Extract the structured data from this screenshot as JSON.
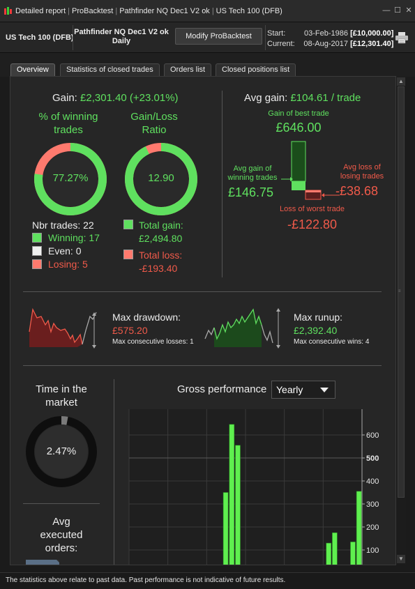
{
  "window": {
    "title_parts": [
      "Detailed report",
      "ProBacktest",
      "Pathfinder NQ Dec1 V2 ok",
      "US Tech 100 (DFB)"
    ],
    "controls": {
      "minimize": "—",
      "maximize": "☐",
      "close": "✕"
    }
  },
  "header": {
    "instrument": "US Tech 100 (DFB)",
    "strategy_line1": "Pathfinder NQ Dec1 V2 ok",
    "strategy_line2": "Daily",
    "modify_button": "Modify ProBacktest",
    "start_label": "Start:",
    "start_date": "03-Feb-1986",
    "start_value": "[£10,000.00]",
    "current_label": "Current:",
    "current_date": "08-Aug-2017",
    "current_value": "[£12,301.40]",
    "print_icon": "printer-icon"
  },
  "tabs": [
    "Overview",
    "Statistics of closed trades",
    "Orders list",
    "Closed positions list"
  ],
  "gain": {
    "label": "Gain:",
    "value": "£2,301.40 (+23.01%)"
  },
  "winning_pct": {
    "title1": "% of winning",
    "title2": "trades",
    "value": "77.27%",
    "fraction": 0.7727
  },
  "gain_loss_ratio": {
    "title1": "Gain/Loss",
    "title2": "Ratio",
    "value": "12.90",
    "fraction": 0.928
  },
  "trades": {
    "nbr_label": "Nbr trades: 22",
    "winning": "Winning: 17",
    "even": "Even: 0",
    "losing": "Losing: 5"
  },
  "totals": {
    "gain_label": "Total gain:",
    "gain_value": "£2,494.80",
    "loss_label": "Total loss:",
    "loss_value": "-£193.40"
  },
  "avg": {
    "label": "Avg gain:",
    "value": "£104.61 / trade",
    "best_label": "Gain of best trade",
    "best_value": "£646.00",
    "avg_win_label1": "Avg gain of",
    "avg_win_label2": "winning trades",
    "avg_win_value": "£146.75",
    "avg_loss_label1": "Avg loss of",
    "avg_loss_label2": "losing trades",
    "avg_loss_value": "-£38.68",
    "worst_label": "Loss of worst trade",
    "worst_value": "-£122.80"
  },
  "drawdown": {
    "label": "Max drawdown:",
    "value": "£575.20",
    "sub": "Max consecutive losses: 1"
  },
  "runup": {
    "label": "Max runup:",
    "value": "£2,392.40",
    "sub": "Max consecutive wins: 4"
  },
  "time_market": {
    "title1": "Time in the",
    "title2": "market",
    "value": "2.47%",
    "fraction": 0.0247
  },
  "avg_orders": {
    "title1": "Avg",
    "title2": "executed",
    "title3": "orders:"
  },
  "gross": {
    "title": "Gross performance",
    "period": "Yearly"
  },
  "chart_data": {
    "type": "bar",
    "title": "Gross performance",
    "ylim": [
      0,
      650
    ],
    "y_ticks": [
      "600",
      "500",
      "400",
      "300",
      "200",
      "100"
    ],
    "y_tick_values": [
      600,
      500,
      400,
      300,
      200,
      100
    ],
    "grid": true,
    "bars": [
      {
        "index": 0,
        "value": 0
      },
      {
        "index": 1,
        "value": 0
      },
      {
        "index": 2,
        "value": 0
      },
      {
        "index": 3,
        "value": 0
      },
      {
        "index": 4,
        "value": 0
      },
      {
        "index": 5,
        "value": 0
      },
      {
        "index": 6,
        "value": 0
      },
      {
        "index": 7,
        "value": 0
      },
      {
        "index": 8,
        "value": 0
      },
      {
        "index": 9,
        "value": 0
      },
      {
        "index": 10,
        "value": 0
      },
      {
        "index": 11,
        "value": 20
      },
      {
        "index": 12,
        "value": 25
      },
      {
        "index": 13,
        "value": 0
      },
      {
        "index": 14,
        "value": 0
      },
      {
        "index": 15,
        "value": 350
      },
      {
        "index": 16,
        "value": 646
      },
      {
        "index": 17,
        "value": 555
      },
      {
        "index": 18,
        "value": 0
      },
      {
        "index": 19,
        "value": 0
      },
      {
        "index": 20,
        "value": 0
      },
      {
        "index": 21,
        "value": 10
      },
      {
        "index": 22,
        "value": 0
      },
      {
        "index": 23,
        "value": 0
      },
      {
        "index": 24,
        "value": 8
      },
      {
        "index": 25,
        "value": 25
      },
      {
        "index": 26,
        "value": 0
      },
      {
        "index": 27,
        "value": 0
      },
      {
        "index": 28,
        "value": 0
      },
      {
        "index": 29,
        "value": 0
      },
      {
        "index": 30,
        "value": 0
      },
      {
        "index": 31,
        "value": 0
      },
      {
        "index": 32,
        "value": 130
      },
      {
        "index": 33,
        "value": 175
      },
      {
        "index": 34,
        "value": 0
      },
      {
        "index": 35,
        "value": 0
      },
      {
        "index": 36,
        "value": 135
      },
      {
        "index": 37,
        "value": 355
      }
    ]
  },
  "footer": {
    "note": "The statistics above relate to past data. Past performance is not indicative of future results."
  },
  "colors": {
    "green": "#5fe05f",
    "red": "#f05a4a",
    "ring_track": "#ff7a6e",
    "bar": "#5fef4f"
  }
}
